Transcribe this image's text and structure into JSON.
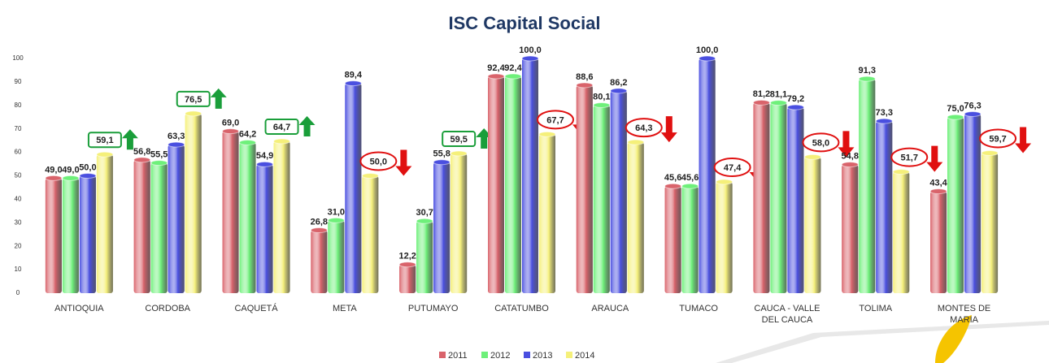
{
  "chart_data": {
    "type": "bar",
    "title": "ISC Capital Social",
    "categories": [
      "ANTIOQUIA",
      "CORDOBA",
      "CAQUETÁ",
      "META",
      "PUTUMAYO",
      "CATATUMBO",
      "ARAUCA",
      "TUMACO",
      "CAUCA - VALLE DEL CAUCA",
      "TOLIMA",
      "MONTES DE MARIA"
    ],
    "series": [
      {
        "name": "2011",
        "color": "#d9636b",
        "values": [
          49.0,
          56.8,
          69.0,
          26.8,
          12.2,
          92.4,
          88.6,
          45.6,
          81.2,
          54.8,
          43.4
        ],
        "value_labels": [
          "49,0",
          "56,8",
          "69,0",
          "26,8",
          "12,2",
          "92,4",
          "88,6",
          "45,6",
          "81,2",
          "54,8",
          "43,4"
        ]
      },
      {
        "name": "2012",
        "color": "#6ef07a",
        "values": [
          49.0,
          55.5,
          64.2,
          31.0,
          30.7,
          92.4,
          80.1,
          45.6,
          81.1,
          91.3,
          75.0
        ],
        "value_labels": [
          "49,0",
          "55,5",
          "64,2",
          "31,0",
          "30,7",
          "92,4",
          "80,1",
          "45,6",
          "81,1",
          "91,3",
          "75,0"
        ]
      },
      {
        "name": "2013",
        "color": "#4a4fe0",
        "values": [
          50.0,
          63.3,
          54.9,
          89.4,
          55.8,
          100.0,
          86.2,
          100.0,
          79.2,
          73.3,
          76.3
        ],
        "value_labels": [
          "50,0",
          "63,3",
          "54,9",
          "89,4",
          "55,8",
          "100,0",
          "86,2",
          "100,0",
          "79,2",
          "73,3",
          "76,3"
        ]
      },
      {
        "name": "2014",
        "color": "#f5f07a",
        "values": [
          59.1,
          76.5,
          64.7,
          50.0,
          59.5,
          67.7,
          64.3,
          47.4,
          58.0,
          51.7,
          59.7
        ],
        "value_labels": [
          "59,1",
          "76,5",
          "64,7",
          "50,0",
          "59,5",
          "67,7",
          "64,3",
          "47,4",
          "58,0",
          "51,7",
          "59,7"
        ]
      }
    ],
    "trend": [
      "up",
      "up",
      "up",
      "down",
      "up",
      "down",
      "down",
      "down",
      "down",
      "down",
      "down"
    ],
    "ylim": [
      0,
      100
    ],
    "yticks": [
      0,
      10,
      20,
      30,
      40,
      50,
      60,
      70,
      80,
      90,
      100
    ],
    "grid": false,
    "legend": "bottom"
  }
}
